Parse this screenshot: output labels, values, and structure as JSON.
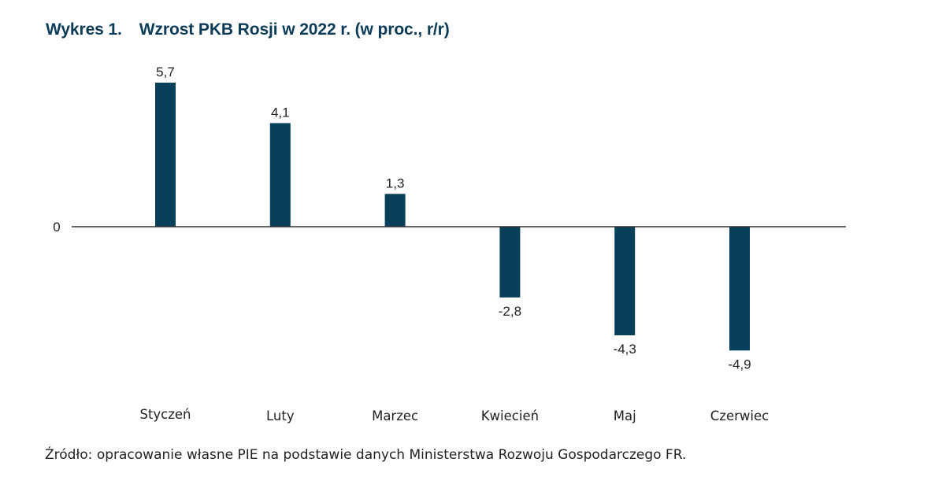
{
  "title": {
    "number": "Wykres 1.",
    "text": "Wzrost PKB Rosji w 2022 r. (w proc., r/r)"
  },
  "source": "Źródło: opracowanie własne PIE na podstawie danych Ministerstwa Rozwoju Gospodarczego FR.",
  "colors": {
    "bar": "#083f5b",
    "title": "#0b3b57",
    "axis": "#333333",
    "text": "#222222"
  },
  "chart_data": {
    "type": "bar",
    "title": "Wzrost PKB Rosji w 2022 r. (w proc., r/r)",
    "categories": [
      "Styczeń",
      "Luty",
      "Marzec",
      "Kwiecień",
      "Maj",
      "Czerwiec"
    ],
    "values": [
      5.7,
      4.1,
      1.3,
      -2.8,
      -4.3,
      -4.9
    ],
    "data_labels": [
      "5,7",
      "4,1",
      "1,3",
      "-2,8",
      "-4,3",
      "-4,9"
    ],
    "y_tick_labels": [
      "0"
    ],
    "xlabel": "",
    "ylabel": "",
    "ylim": [
      -6,
      6
    ],
    "grid": false,
    "legend": "none"
  }
}
